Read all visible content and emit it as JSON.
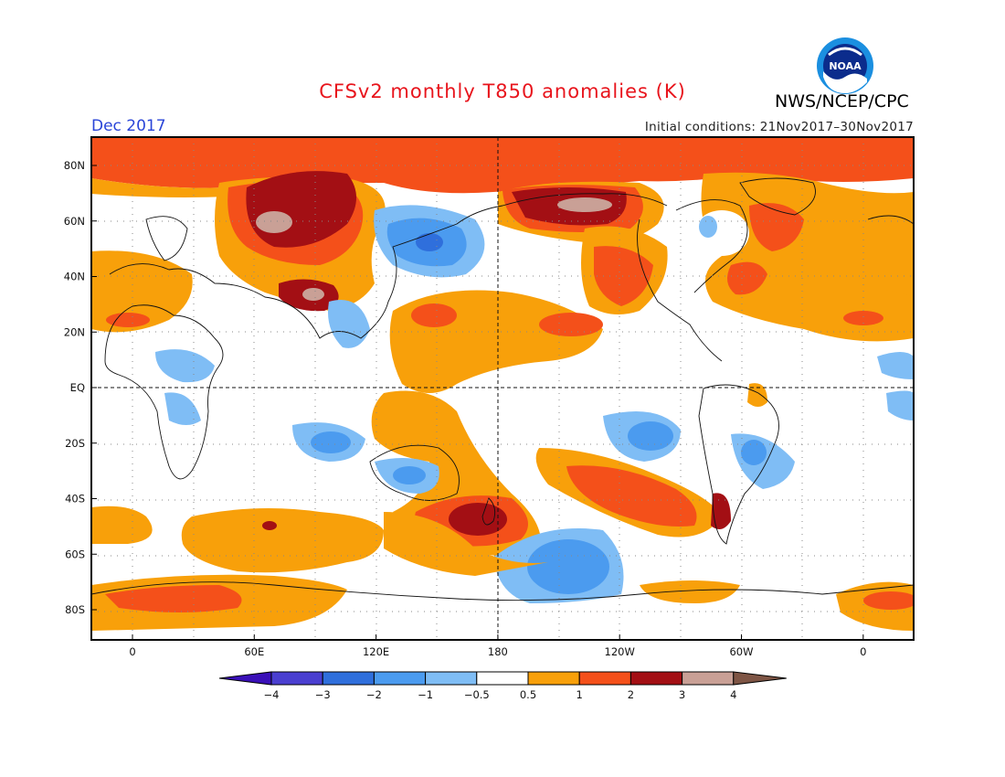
{
  "header": {
    "title": "CFSv2 monthly T850 anomalies (K)",
    "valid_month": "Dec 2017",
    "initial_conditions": "Initial conditions: 21Nov2017–30Nov2017",
    "agency": "NWS/NCEP/CPC",
    "logo_text": "NOAA"
  },
  "map": {
    "projection": "equirectangular",
    "lat_labels": [
      "80N",
      "60N",
      "40N",
      "20N",
      "EQ",
      "20S",
      "40S",
      "60S",
      "80S"
    ],
    "lon_labels": [
      "0",
      "60E",
      "120E",
      "180",
      "120W",
      "60W",
      "0"
    ],
    "reference_lines": [
      "EQ",
      "180"
    ]
  },
  "colorbar": {
    "labels": [
      "−4",
      "−3",
      "−2",
      "−1",
      "−0.5",
      "0.5",
      "1",
      "2",
      "3",
      "4"
    ],
    "colors": [
      "#3a10b8",
      "#4a3fd0",
      "#2f6fdc",
      "#4b9bef",
      "#7fbdf5",
      "#ffffff",
      "#f8a00a",
      "#f4501a",
      "#a30f14",
      "#c9a096",
      "#7e5545"
    ]
  }
}
